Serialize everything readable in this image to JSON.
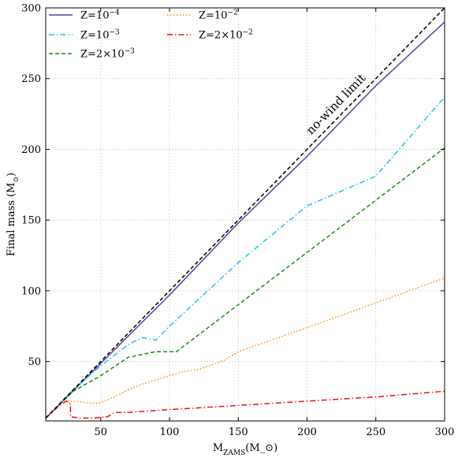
{
  "chart_data": {
    "type": "line",
    "xlabel": "M_ZAMS(M_⊙)",
    "ylabel": "Final mass (M_⊙)",
    "xlim": [
      10,
      300
    ],
    "ylim": [
      8,
      300
    ],
    "xticks": [
      50,
      100,
      150,
      200,
      250,
      300
    ],
    "yticks": [
      50,
      100,
      150,
      200,
      250,
      300
    ],
    "grid": true,
    "legend_position": "top-left",
    "annotation": "no-wind limit",
    "series": [
      {
        "name": "Z=10^−4",
        "color": "#5b3fa6",
        "dash": "solid",
        "x": [
          10,
          100,
          150,
          200,
          250,
          300
        ],
        "y": [
          10,
          97,
          148,
          195,
          245,
          290
        ]
      },
      {
        "name": "Z=10^−3",
        "color": "#1cc6e8",
        "dash": "dashdot",
        "x": [
          10,
          30,
          50,
          70,
          80,
          90,
          100,
          150,
          200,
          250,
          300
        ],
        "y": [
          10,
          30,
          47,
          62,
          67,
          65,
          75,
          120,
          160,
          181,
          237
        ]
      },
      {
        "name": "Z=2×10^−3",
        "color": "#1e8a1e",
        "dash": "dashed",
        "x": [
          10,
          30,
          50,
          70,
          90,
          105,
          300
        ],
        "y": [
          10,
          29,
          40,
          53,
          57,
          57,
          201
        ]
      },
      {
        "name": "Z=10^−2",
        "color": "#ff8c00",
        "dash": "dotted",
        "x": [
          10,
          20,
          25,
          30,
          40,
          45,
          50,
          60,
          70,
          80,
          100,
          110,
          120,
          140,
          150,
          200,
          300
        ],
        "y": [
          10,
          20,
          22,
          22,
          21,
          20.5,
          21,
          25,
          30,
          34,
          40,
          43,
          44,
          51,
          57,
          74,
          109
        ]
      },
      {
        "name": "Z=2×10^−2",
        "color": "#ee1111",
        "dash": "dashdot",
        "x": [
          10,
          20,
          25,
          28,
          28,
          35,
          45,
          50,
          55,
          60,
          70,
          100,
          150,
          200,
          250,
          300
        ],
        "y": [
          10,
          19,
          22,
          20,
          11,
          10,
          10,
          10.5,
          11,
          14,
          14,
          16,
          19,
          22,
          25,
          29
        ]
      },
      {
        "name": "",
        "color": "#000000",
        "dash": "dashed",
        "x": [
          10,
          300
        ],
        "y": [
          10,
          300
        ]
      }
    ]
  }
}
